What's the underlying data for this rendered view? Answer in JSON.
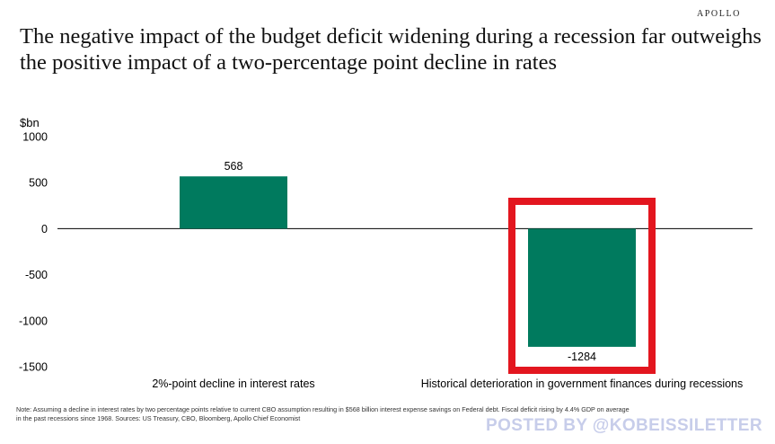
{
  "brand": "APOLLO",
  "title_lines": [
    "The negative impact of the budget deficit widening during a recession far outweighs",
    "the positive impact of a two-percentage point decline in rates"
  ],
  "note_lines": [
    "Note: Assuming a decline in interest rates by two percentage points relative to current CBO assumption resulting in $568 billion interest expense savings on Federal debt. Fiscal deficit rising by 4.4% GDP on average",
    "in the past recessions since 1968. Sources: US Treasury, CBO, Bloomberg, Apollo Chief Economist"
  ],
  "watermark": "POSTED BY @KOBEISSILETTER",
  "colors": {
    "bar": "#007a5e",
    "highlight": "#e3161f",
    "axis": "#000000"
  },
  "chart_data": {
    "type": "bar",
    "title": "The negative impact of the budget deficit widening during a recession far outweighs the positive impact of a two-percentage point decline in rates",
    "ylabel": "$bn",
    "xlabel": "",
    "categories": [
      "2%-point decline in interest rates",
      "Historical deterioration in government finances during recessions"
    ],
    "values": [
      568,
      -1284
    ],
    "data_labels": [
      "568",
      "-1284"
    ],
    "ylim": [
      -1500,
      1000
    ],
    "yticks": [
      1000,
      500,
      0,
      -500,
      -1000,
      -1500
    ],
    "ytick_labels": [
      "1000",
      "500",
      "0",
      "-500",
      "-1000",
      "-1500"
    ],
    "grid": false,
    "highlighted_category": "Historical deterioration in government finances during recessions"
  }
}
